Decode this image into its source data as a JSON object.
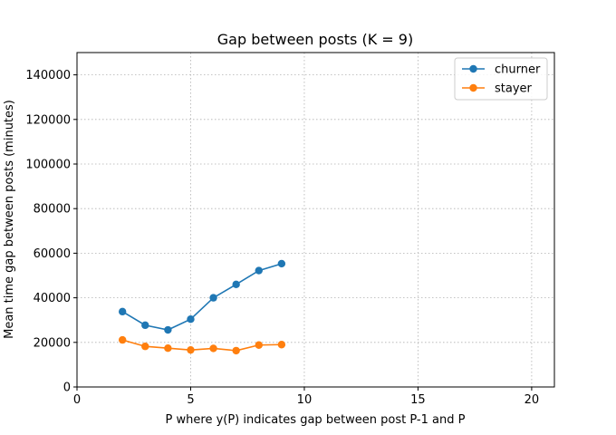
{
  "chart_data": {
    "type": "line",
    "title": "Gap between posts (K = 9)",
    "xlabel": "P where y(P) indicates gap between post P-1 and P",
    "ylabel": "Mean time gap between posts (minutes)",
    "xlim": [
      0,
      21
    ],
    "ylim": [
      0,
      150000
    ],
    "xticks": [
      0,
      5,
      10,
      15,
      20
    ],
    "yticks": [
      0,
      20000,
      40000,
      60000,
      80000,
      100000,
      120000,
      140000
    ],
    "grid": true,
    "legend_position": "top-right",
    "x": [
      2,
      3,
      4,
      5,
      6,
      7,
      8,
      9
    ],
    "series": [
      {
        "name": "churner",
        "color": "#1f77b4",
        "values": [
          33800,
          27700,
          25600,
          30400,
          40000,
          46000,
          52200,
          55300
        ]
      },
      {
        "name": "stayer",
        "color": "#ff7f0e",
        "values": [
          21100,
          18200,
          17400,
          16600,
          17300,
          16300,
          18800,
          19000
        ]
      }
    ]
  }
}
